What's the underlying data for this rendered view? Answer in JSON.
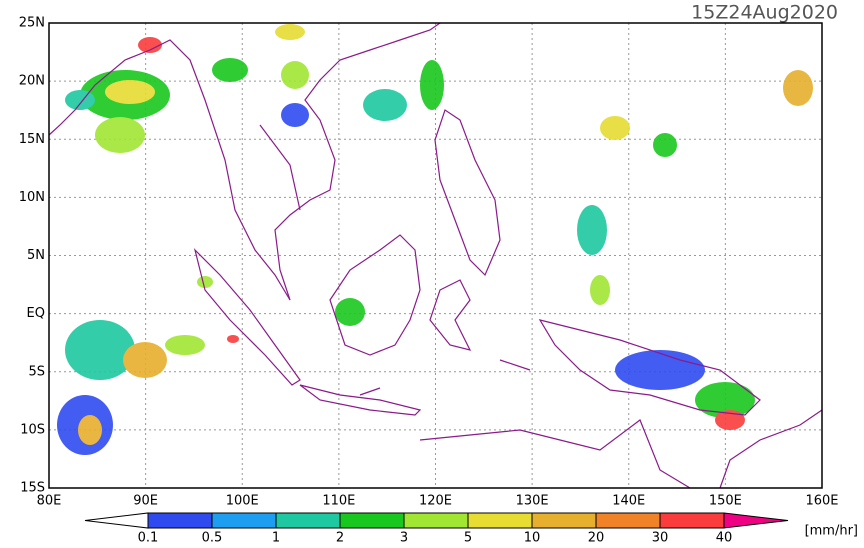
{
  "title": "15Z24Aug2020",
  "lat_labels": [
    "25N",
    "20N",
    "15N",
    "10N",
    "5N",
    "EQ",
    "5S",
    "10S",
    "15S"
  ],
  "lon_labels": [
    "80E",
    "90E",
    "100E",
    "110E",
    "120E",
    "130E",
    "140E",
    "150E",
    "160E"
  ],
  "colorbar": {
    "labels": [
      "0.1",
      "0.5",
      "1",
      "2",
      "3",
      "5",
      "10",
      "20",
      "30",
      "40"
    ],
    "colors": [
      "#ffffff",
      "#2f4bf0",
      "#1e9ef0",
      "#1ec8a0",
      "#19c81e",
      "#a0e632",
      "#e6dc32",
      "#e6af2d",
      "#f08228",
      "#fa3c3c",
      "#f00082"
    ],
    "unit": "[mm/hr]"
  }
}
